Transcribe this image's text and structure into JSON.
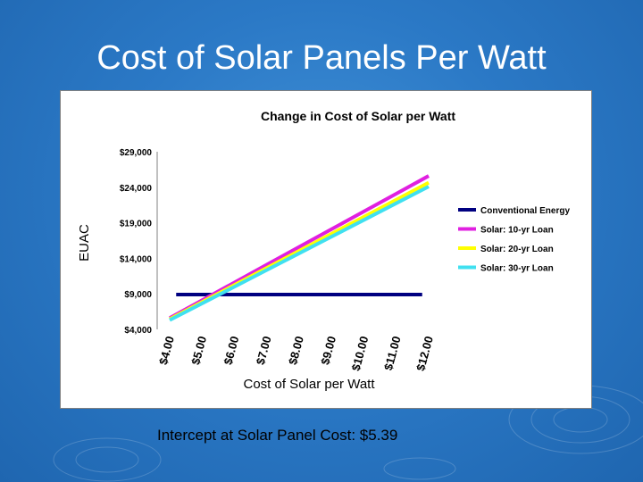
{
  "slide": {
    "title": "Cost of Solar Panels Per Watt",
    "footer": "Intercept at Solar Panel Cost:  $5.39"
  },
  "chart_data": {
    "type": "line",
    "title": "Change in Cost of Solar per Watt",
    "xlabel": "Cost of Solar per Watt",
    "ylabel": "EUAC",
    "x": [
      4,
      5,
      6,
      7,
      8,
      9,
      10,
      11,
      12
    ],
    "x_tick_labels": [
      "$4.00",
      "$5.00",
      "$6.00",
      "$7.00",
      "$8.00",
      "$9.00",
      "$10.00",
      "$11.00",
      "$12.00"
    ],
    "xlim": [
      4,
      12
    ],
    "ylim": [
      4000,
      29000
    ],
    "y_ticks": [
      4000,
      9000,
      14000,
      19000,
      24000,
      29000
    ],
    "y_tick_labels": [
      "$4,000",
      "$9,000",
      "$14,000",
      "$19,000",
      "$24,000",
      "$29,000"
    ],
    "legend_position": "right",
    "series": [
      {
        "name": "Conventional Energy",
        "color": "#000080",
        "values": [
          8900,
          8900,
          8900,
          8900,
          8900,
          8900,
          8900,
          8900,
          8900
        ]
      },
      {
        "name": "Solar: 10-yr Loan",
        "color": "#e020e0",
        "values": [
          5600,
          8100,
          10600,
          13100,
          15600,
          18100,
          20600,
          23100,
          25600
        ]
      },
      {
        "name": "Solar: 20-yr Loan",
        "color": "#ffff00",
        "values": [
          5450,
          7850,
          10250,
          12650,
          15050,
          17450,
          19850,
          22250,
          24650
        ]
      },
      {
        "name": "Solar: 30-yr Loan",
        "color": "#40e0f0",
        "values": [
          5300,
          7650,
          10000,
          12350,
          14700,
          17050,
          19400,
          21750,
          24100
        ]
      }
    ]
  }
}
